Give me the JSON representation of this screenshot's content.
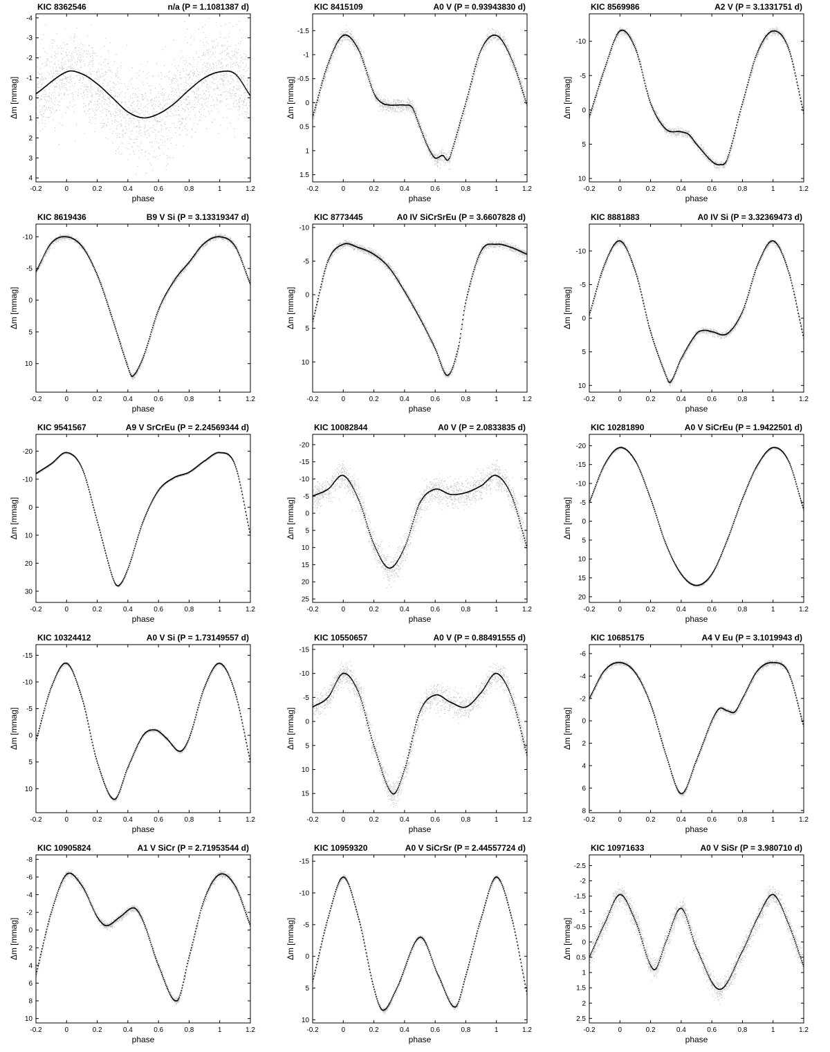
{
  "chart_data": [
    {
      "type": "scatter",
      "title_left": "KIC 8362546",
      "title_right": "n/a (P = 1.1081387 d)",
      "xlabel": "phase",
      "ylabel": "Δm  [mmag]",
      "xlim": [
        -0.2,
        1.2
      ],
      "ylim": [
        -4.2,
        4.2
      ],
      "x_ticks": [
        "-0.2",
        "0",
        "0.2",
        "0.4",
        "0.6",
        "0.8",
        "1",
        "1.2"
      ],
      "y_ticks": [
        "-4",
        "-3",
        "-2",
        "-1",
        "0",
        "1",
        "2",
        "3",
        "4"
      ],
      "y_inverted": true,
      "scatter_band": 2.0,
      "curve": {
        "x": [
          -0.2,
          0,
          0.1,
          0.2,
          0.3,
          0.4,
          0.5,
          0.6,
          0.7,
          0.8,
          0.9,
          1.0,
          1.1,
          1.2
        ],
        "y": [
          -0.2,
          -1.3,
          -1.2,
          -0.7,
          0,
          0.7,
          1.0,
          0.8,
          0.3,
          -0.4,
          -1.0,
          -1.3,
          -1.2,
          -0.1
        ]
      }
    },
    {
      "type": "scatter",
      "title_left": "KIC 8415109",
      "title_right": "A0 V (P = 0.93943830 d)",
      "xlabel": "phase",
      "ylabel": "Δm  [mmag]",
      "xlim": [
        -0.2,
        1.2
      ],
      "ylim": [
        -1.85,
        1.65
      ],
      "x_ticks": [
        "-0.2",
        "0",
        "0.2",
        "0.4",
        "0.6",
        "0.8",
        "1",
        "1.2"
      ],
      "y_ticks": [
        "-1.5",
        "-1",
        "-0.5",
        "0",
        "0.5",
        "1",
        "1.5"
      ],
      "y_inverted": true,
      "scatter_band": 0.12,
      "curve": {
        "x": [
          -0.2,
          -0.1,
          0,
          0.1,
          0.2,
          0.25,
          0.3,
          0.35,
          0.4,
          0.45,
          0.5,
          0.55,
          0.6,
          0.65,
          0.68,
          0.7,
          0.8,
          0.9,
          1.0,
          1.1,
          1.2
        ],
        "y": [
          0.3,
          -0.8,
          -1.4,
          -1.1,
          -0.2,
          0,
          0.05,
          0.05,
          0.05,
          0.1,
          0.5,
          0.9,
          1.15,
          1.1,
          1.2,
          1.1,
          0,
          -1.1,
          -1.4,
          -0.9,
          0.05
        ]
      }
    },
    {
      "type": "scatter",
      "title_left": "KIC 8569986",
      "title_right": "A2 V (P = 3.1331751 d)",
      "xlabel": "phase",
      "ylabel": "Δm  [mmag]",
      "xlim": [
        -0.2,
        1.2
      ],
      "ylim": [
        -14,
        10.5
      ],
      "x_ticks": [
        "-0.2",
        "0",
        "0.2",
        "0.4",
        "0.6",
        "0.8",
        "1",
        "1.2"
      ],
      "y_ticks": [
        "-10",
        "-5",
        "0",
        "5",
        "10"
      ],
      "y_inverted": true,
      "scatter_band": 0.5,
      "curve": {
        "x": [
          -0.2,
          -0.1,
          0,
          0.1,
          0.2,
          0.3,
          0.4,
          0.45,
          0.5,
          0.6,
          0.65,
          0.7,
          0.8,
          0.9,
          1.0,
          1.1,
          1.2
        ],
        "y": [
          1,
          -6,
          -11.5,
          -9,
          -1,
          2.8,
          3.2,
          3.6,
          5,
          7.5,
          8,
          7.2,
          -1,
          -8.5,
          -11.5,
          -9,
          0.5
        ]
      }
    },
    {
      "type": "scatter",
      "title_left": "KIC 8619436",
      "title_right": "B9 V Si (P = 3.13319347 d)",
      "xlabel": "phase",
      "ylabel": "Δm  [mmag]",
      "xlim": [
        -0.2,
        1.2
      ],
      "ylim": [
        -12,
        14.5
      ],
      "x_ticks": [
        "-0.2",
        "0",
        "0.2",
        "0.4",
        "0.6",
        "0.8",
        "1",
        "1.2"
      ],
      "y_ticks": [
        "-10",
        "-5",
        "0",
        "5",
        "10"
      ],
      "y_inverted": true,
      "scatter_band": 0.4,
      "curve": {
        "x": [
          -0.2,
          -0.1,
          0,
          0.1,
          0.2,
          0.3,
          0.4,
          0.43,
          0.5,
          0.6,
          0.7,
          0.8,
          0.9,
          1.0,
          1.1,
          1.2
        ],
        "y": [
          -4.5,
          -9,
          -10,
          -8.5,
          -4,
          3,
          10.5,
          12,
          9,
          1.5,
          -3,
          -6,
          -9,
          -10,
          -8.5,
          -2.5
        ]
      }
    },
    {
      "type": "scatter",
      "title_left": "KIC 8773445",
      "title_right": "A0 IV SiCrSrEu (P = 3.6607828 d)",
      "xlabel": "phase",
      "ylabel": "Δm  [mmag]",
      "xlim": [
        -0.2,
        1.2
      ],
      "ylim": [
        -10.5,
        14.5
      ],
      "x_ticks": [
        "-0.2",
        "0",
        "0.2",
        "0.4",
        "0.6",
        "0.8",
        "1",
        "1.2"
      ],
      "y_ticks": [
        "-10",
        "-5",
        "0",
        "5",
        "10"
      ],
      "y_inverted": true,
      "scatter_band": 0.5,
      "curve": {
        "x": [
          -0.2,
          -0.1,
          0,
          0.1,
          0.2,
          0.3,
          0.4,
          0.5,
          0.6,
          0.68,
          0.75,
          0.8,
          0.9,
          1.0,
          1.1,
          1.2
        ],
        "y": [
          4,
          -5,
          -7.5,
          -7,
          -6,
          -4,
          -0.5,
          3.5,
          8,
          12,
          8,
          1,
          -6.5,
          -7.5,
          -7,
          -6
        ]
      }
    },
    {
      "type": "scatter",
      "title_left": "KIC 8881883",
      "title_right": "A0 IV Si (P = 3.32369473 d)",
      "xlabel": "phase",
      "ylabel": "Δm  [mmag]",
      "xlim": [
        -0.2,
        1.2
      ],
      "ylim": [
        -14,
        11
      ],
      "x_ticks": [
        "-0.2",
        "0",
        "0.2",
        "0.4",
        "0.6",
        "0.8",
        "1",
        "1.2"
      ],
      "y_ticks": [
        "-10",
        "-5",
        "0",
        "5",
        "10"
      ],
      "y_inverted": true,
      "scatter_band": 0.4,
      "curve": {
        "x": [
          -0.2,
          -0.1,
          0,
          0.1,
          0.2,
          0.3,
          0.33,
          0.4,
          0.5,
          0.55,
          0.6,
          0.7,
          0.8,
          0.9,
          1.0,
          1.1,
          1.2
        ],
        "y": [
          -0.5,
          -8,
          -11.5,
          -7,
          2,
          8.5,
          9.5,
          6,
          2.3,
          1.8,
          2,
          2.3,
          -1,
          -8,
          -11.5,
          -7,
          3
        ]
      }
    },
    {
      "type": "scatter",
      "title_left": "KIC 9541567",
      "title_right": "A9 V SrCrEu (P = 2.24569344 d)",
      "xlabel": "phase",
      "ylabel": "Δm  [mmag]",
      "xlim": [
        -0.2,
        1.2
      ],
      "ylim": [
        -26,
        34
      ],
      "x_ticks": [
        "-0.2",
        "0",
        "0.2",
        "0.4",
        "0.6",
        "0.8",
        "1",
        "1.2"
      ],
      "y_ticks": [
        "-20",
        "-10",
        "0",
        "10",
        "20",
        "30"
      ],
      "y_inverted": true,
      "scatter_band": 0.3,
      "curve": {
        "x": [
          -0.2,
          -0.1,
          0,
          0.1,
          0.2,
          0.3,
          0.34,
          0.4,
          0.5,
          0.6,
          0.7,
          0.8,
          0.9,
          1.0,
          1.1,
          1.2
        ],
        "y": [
          -12,
          -15.5,
          -19.5,
          -14,
          5,
          25,
          28,
          22,
          5,
          -6,
          -10.5,
          -12.5,
          -16.5,
          -19.5,
          -15,
          10
        ]
      }
    },
    {
      "type": "scatter",
      "title_left": "KIC 10082844",
      "title_right": "A0 V (P = 2.0833835 d)",
      "xlabel": "phase",
      "ylabel": "Δm  [mmag]",
      "xlim": [
        -0.2,
        1.2
      ],
      "ylim": [
        -23,
        26
      ],
      "x_ticks": [
        "-0.2",
        "0",
        "0.2",
        "0.4",
        "0.6",
        "0.8",
        "1",
        "1.2"
      ],
      "y_ticks": [
        "-20",
        "-15",
        "-10",
        "-5",
        "0",
        "5",
        "10",
        "15",
        "20",
        "25"
      ],
      "y_inverted": true,
      "scatter_band": 3.5,
      "curve": {
        "x": [
          -0.2,
          -0.1,
          0,
          0.1,
          0.2,
          0.3,
          0.4,
          0.5,
          0.6,
          0.7,
          0.8,
          0.9,
          1.0,
          1.1,
          1.2
        ],
        "y": [
          -5,
          -7,
          -11,
          -4,
          9,
          16,
          10,
          -3,
          -7,
          -5.5,
          -6,
          -8,
          -11,
          -5,
          10
        ]
      }
    },
    {
      "type": "scatter",
      "title_left": "KIC 10281890",
      "title_right": "A0 V SiCrEu (P = 1.9422501 d)",
      "xlabel": "phase",
      "ylabel": "Δm  [mmag]",
      "xlim": [
        -0.2,
        1.2
      ],
      "ylim": [
        -23,
        21.5
      ],
      "x_ticks": [
        "-0.2",
        "0",
        "0.2",
        "0.4",
        "0.6",
        "0.8",
        "1",
        "1.2"
      ],
      "y_ticks": [
        "-20",
        "-15",
        "-10",
        "-5",
        "0",
        "5",
        "10",
        "15",
        "20"
      ],
      "y_inverted": true,
      "scatter_band": 0.3,
      "curve": {
        "x": [
          -0.2,
          -0.1,
          0,
          0.1,
          0.2,
          0.3,
          0.4,
          0.5,
          0.6,
          0.7,
          0.8,
          0.9,
          1.0,
          1.1,
          1.2
        ],
        "y": [
          -5,
          -15,
          -19.5,
          -16,
          -6,
          6,
          14,
          17,
          14,
          5,
          -6,
          -15,
          -19.5,
          -16,
          -3
        ]
      }
    },
    {
      "type": "scatter",
      "title_left": "KIC 10324412",
      "title_right": "A0 V Si (P = 1.73149557 d)",
      "xlabel": "phase",
      "ylabel": "Δm  [mmag]",
      "xlim": [
        -0.2,
        1.2
      ],
      "ylim": [
        -17,
        14.5
      ],
      "x_ticks": [
        "-0.2",
        "0",
        "0.2",
        "0.4",
        "0.6",
        "0.8",
        "1",
        "1.2"
      ],
      "y_ticks": [
        "-15",
        "-10",
        "-5",
        "0",
        "5",
        "10"
      ],
      "y_inverted": true,
      "scatter_band": 0.3,
      "curve": {
        "x": [
          -0.2,
          -0.1,
          0,
          0.1,
          0.2,
          0.31,
          0.4,
          0.5,
          0.58,
          0.65,
          0.74,
          0.8,
          0.9,
          1.0,
          1.1,
          1.2
        ],
        "y": [
          1,
          -9,
          -13.5,
          -7,
          5,
          12,
          6,
          0,
          -1,
          0.5,
          3,
          0.5,
          -9,
          -13.5,
          -8,
          5
        ]
      }
    },
    {
      "type": "scatter",
      "title_left": "KIC 10550657",
      "title_right": "A0 V (P = 0.88491555 d)",
      "xlabel": "phase",
      "ylabel": "Δm  [mmag]",
      "xlim": [
        -0.2,
        1.2
      ],
      "ylim": [
        -16,
        19
      ],
      "x_ticks": [
        "-0.2",
        "0",
        "0.2",
        "0.4",
        "0.6",
        "0.8",
        "1",
        "1.2"
      ],
      "y_ticks": [
        "-15",
        "-10",
        "-5",
        "0",
        "5",
        "10",
        "15"
      ],
      "y_inverted": true,
      "scatter_band": 2.2,
      "curve": {
        "x": [
          -0.2,
          -0.1,
          0,
          0.1,
          0.2,
          0.32,
          0.4,
          0.5,
          0.6,
          0.7,
          0.8,
          0.9,
          1.0,
          1.1,
          1.2
        ],
        "y": [
          -3,
          -5,
          -10,
          -6,
          5,
          15,
          10,
          -2,
          -5.5,
          -4,
          -3,
          -6,
          -10,
          -5,
          7
        ]
      }
    },
    {
      "type": "scatter",
      "title_left": "KIC 10685175",
      "title_right": "A4 V Eu (P = 3.1019943 d)",
      "xlabel": "phase",
      "ylabel": "Δm  [mmag]",
      "xlim": [
        -0.2,
        1.2
      ],
      "ylim": [
        -6.8,
        8.2
      ],
      "x_ticks": [
        "-0.2",
        "0",
        "0.2",
        "0.4",
        "0.6",
        "0.8",
        "1",
        "1.2"
      ],
      "y_ticks": [
        "-6",
        "-4",
        "-2",
        "0",
        "2",
        "4",
        "6",
        "8"
      ],
      "y_inverted": true,
      "scatter_band": 0.2,
      "curve": {
        "x": [
          -0.2,
          -0.1,
          0,
          0.1,
          0.2,
          0.3,
          0.4,
          0.5,
          0.6,
          0.65,
          0.7,
          0.75,
          0.8,
          0.9,
          1.0,
          1.1,
          1.2
        ],
        "y": [
          -2,
          -4.5,
          -5.2,
          -4.3,
          -1.5,
          3,
          6.5,
          3.5,
          0,
          -1.1,
          -0.9,
          -0.8,
          -2,
          -4.5,
          -5.2,
          -4.3,
          0.5
        ]
      }
    },
    {
      "type": "scatter",
      "title_left": "KIC 10905824",
      "title_right": "A1 V SiCr (P = 2.71953544 d)",
      "xlabel": "phase",
      "ylabel": "Δm  [mmag]",
      "xlim": [
        -0.2,
        1.2
      ],
      "ylim": [
        -8.5,
        10.5
      ],
      "x_ticks": [
        "-0.2",
        "0",
        "0.2",
        "0.4",
        "0.6",
        "0.8",
        "1",
        "1.2"
      ],
      "y_ticks": [
        "-8",
        "-6",
        "-4",
        "-2",
        "0",
        "2",
        "4",
        "6",
        "8",
        "10"
      ],
      "y_inverted": true,
      "scatter_band": 0.35,
      "curve": {
        "x": [
          -0.2,
          -0.1,
          0,
          0.1,
          0.2,
          0.26,
          0.35,
          0.44,
          0.5,
          0.6,
          0.72,
          0.8,
          0.9,
          1.0,
          1.1,
          1.2
        ],
        "y": [
          5,
          -2,
          -6.3,
          -5,
          -1.5,
          -0.5,
          -1.5,
          -2.5,
          -1,
          4,
          8,
          3,
          -3.5,
          -6.3,
          -5,
          -0.5
        ]
      }
    },
    {
      "type": "scatter",
      "title_left": "KIC 10959320",
      "title_right": "A0 V SiCrSr (P = 2.44557724 d)",
      "xlabel": "phase",
      "ylabel": "Δm  [mmag]",
      "xlim": [
        -0.2,
        1.2
      ],
      "ylim": [
        -16,
        10.5
      ],
      "x_ticks": [
        "-0.2",
        "0",
        "0.2",
        "0.4",
        "0.6",
        "0.8",
        "1",
        "1.2"
      ],
      "y_ticks": [
        "-15",
        "-10",
        "-5",
        "0",
        "5",
        "10"
      ],
      "y_inverted": true,
      "scatter_band": 0.35,
      "curve": {
        "x": [
          -0.2,
          -0.1,
          0,
          0.1,
          0.2,
          0.26,
          0.35,
          0.5,
          0.62,
          0.73,
          0.8,
          0.9,
          1.0,
          1.1,
          1.2
        ],
        "y": [
          4,
          -6,
          -12.5,
          -6,
          5,
          8.5,
          5,
          -3,
          3,
          8,
          3,
          -6,
          -12.5,
          -6,
          6
        ]
      }
    },
    {
      "type": "scatter",
      "title_left": "KIC 10971633",
      "title_right": "A0 V SiSr (P = 3.980710 d)",
      "xlabel": "phase",
      "ylabel": "Δm [mmag]",
      "xlim": [
        -0.2,
        1.2
      ],
      "ylim": [
        -2.85,
        2.65
      ],
      "x_ticks": [
        "-0.2",
        "0",
        "0.2",
        "0.4",
        "0.6",
        "0.8",
        "1",
        "1.2"
      ],
      "y_ticks": [
        "-2.5",
        "-2",
        "-1.5",
        "-1",
        "-0.5",
        "0",
        "0.5",
        "1",
        "1.5",
        "2",
        "2.5"
      ],
      "y_inverted": true,
      "scatter_band": 0.3,
      "curve": {
        "x": [
          -0.2,
          -0.1,
          0,
          0.1,
          0.22,
          0.3,
          0.4,
          0.5,
          0.65,
          0.8,
          0.9,
          1.0,
          1.1,
          1.2
        ],
        "y": [
          0.5,
          -0.6,
          -1.55,
          -0.7,
          0.9,
          0,
          -1.1,
          0.2,
          1.55,
          0.3,
          -0.8,
          -1.55,
          -0.6,
          0.8
        ]
      }
    }
  ]
}
